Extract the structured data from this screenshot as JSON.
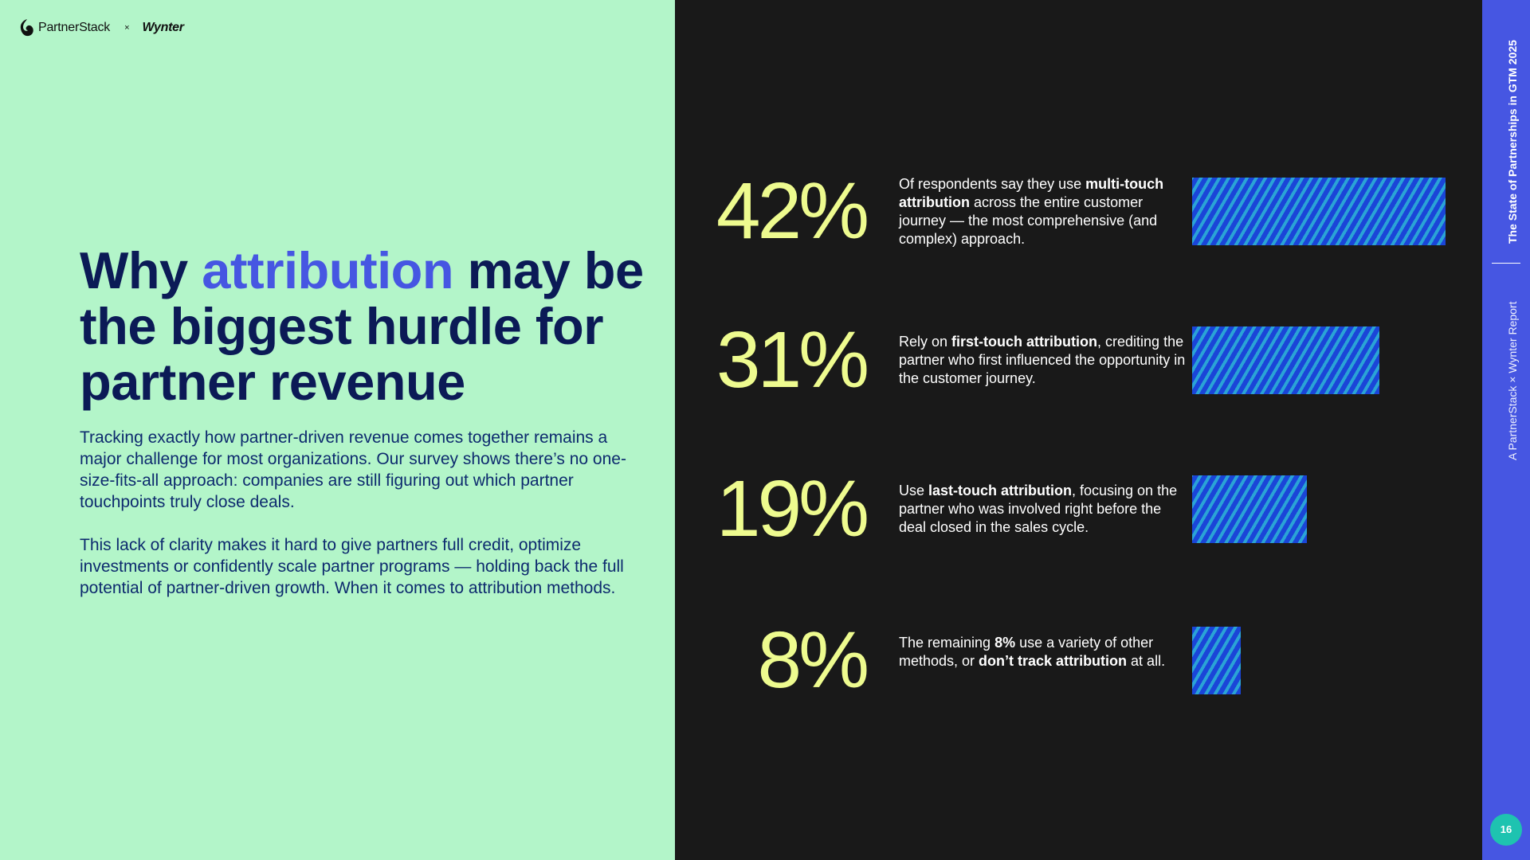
{
  "header": {
    "brand_primary": "PartnerStack",
    "separator": "×",
    "brand_secondary": "Wynter"
  },
  "headline": {
    "part1": "Why ",
    "accent": "attribution",
    "part2": " may be the biggest hurdle for partner revenue"
  },
  "body": {
    "paragraph1": "Tracking exactly how partner-driven revenue comes together remains a major challenge for most organizations. Our survey shows there’s no one-size-fits-all approach: companies are still figuring out which partner touchpoints truly close deals.",
    "paragraph2": "This lack of clarity makes it hard to give partners full credit, optimize investments or confidently scale partner programs — holding back the full potential of partner-driven growth. When it comes to attribution methods."
  },
  "stats": [
    {
      "percent_label": "42%",
      "desc_before": "Of respondents say they use ",
      "desc_bold": "multi-touch attribution",
      "desc_after": " across the entire customer journey — the most comprehensive (and complex) approach."
    },
    {
      "percent_label": "31%",
      "desc_before": "Rely on ",
      "desc_bold": "first-touch attribution",
      "desc_after": ", crediting the partner who first influenced the opportunity in the customer journey."
    },
    {
      "percent_label": "19%",
      "desc_before": "Use ",
      "desc_bold": "last-touch attribution",
      "desc_after": ", focusing on the partner who was involved right before the deal closed in the sales cycle."
    },
    {
      "percent_label": "8%",
      "desc_before": "The remaining ",
      "desc_bold": "8%",
      "desc_mid": " use a variety of other methods, or ",
      "desc_bold2": "don’t track attribution",
      "desc_after": " at all."
    }
  ],
  "chart_data": {
    "type": "bar",
    "orientation": "horizontal",
    "categories": [
      "multi-touch attribution",
      "first-touch attribution",
      "last-touch attribution",
      "other methods / don’t track"
    ],
    "values": [
      42,
      31,
      19,
      8
    ],
    "unit": "%",
    "xlim": [
      0,
      42
    ]
  },
  "sidebar": {
    "report_title": "The State of Partnerships in GTM 2025",
    "report_subtitle": "A PartnerStack × Wynter Report",
    "page_number": "16"
  },
  "colors": {
    "left_bg": "#b3f5c9",
    "right_bg": "#191919",
    "headline": "#0b1a56",
    "accent": "#4656e2",
    "stat_number": "#eefb8f",
    "bar_dark": "#1a45d8",
    "bar_light": "#2aa3d6",
    "page_badge": "#1ec3b0"
  }
}
